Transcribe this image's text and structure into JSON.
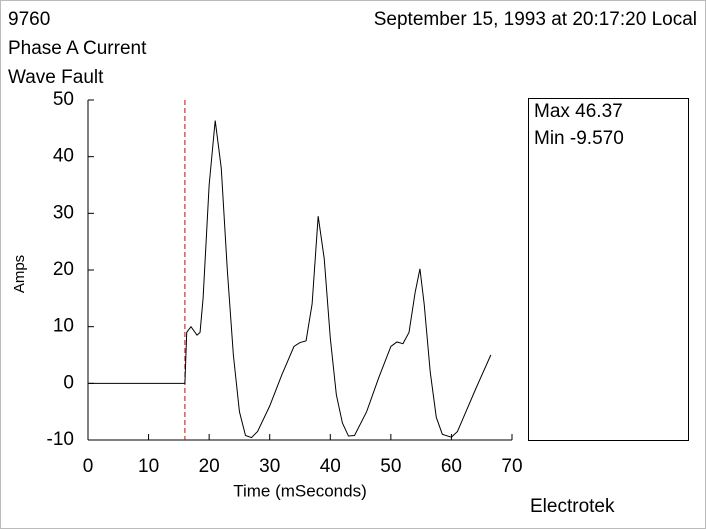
{
  "chart_data": {
    "type": "line",
    "header": {
      "id": "9760",
      "title": "Phase A Current",
      "subtitle": "Wave Fault",
      "timestamp": "September 15, 1993 at 20:17:20 Local"
    },
    "x_label": "Time (mSeconds)",
    "y_label": "Amps",
    "stats": [
      "Max 46.37",
      "Min  -9.570"
    ],
    "footer": "Electrotek",
    "x": [
      0,
      16,
      16.3,
      17,
      18,
      18.5,
      19,
      20,
      21,
      22,
      23,
      24,
      25,
      26,
      27,
      28,
      30,
      32,
      33,
      34,
      35,
      36,
      37,
      38,
      39,
      40,
      41,
      42,
      43,
      44,
      46,
      48,
      50,
      51,
      52,
      53,
      54,
      54.8,
      55.5,
      56.5,
      57.5,
      58.5,
      60,
      61,
      62,
      64,
      66.5
    ],
    "series": [
      {
        "color": "#000000",
        "values": [
          0,
          0,
          9,
          10,
          8.5,
          9,
          15,
          35,
          46.37,
          38,
          20,
          5,
          -5,
          -9.2,
          -9.57,
          -8.5,
          -4,
          1.5,
          4,
          6.5,
          7.2,
          7.5,
          14,
          29.5,
          22,
          8,
          -2,
          -7,
          -9.3,
          -9.2,
          -5,
          1,
          6.5,
          7.3,
          7,
          9,
          16,
          20.2,
          14,
          2,
          -6,
          -9,
          -9.5,
          -8.5,
          -6,
          -1,
          5
        ]
      }
    ],
    "fault_marker": 16,
    "fault_marker_color": "#e00000",
    "xlim": [
      0,
      70
    ],
    "xticks": [
      0,
      10,
      20,
      30,
      40,
      50,
      60,
      70
    ],
    "ylim": [
      -10,
      50
    ],
    "yticks": [
      -10,
      0,
      10,
      20,
      30,
      40,
      50
    ]
  }
}
